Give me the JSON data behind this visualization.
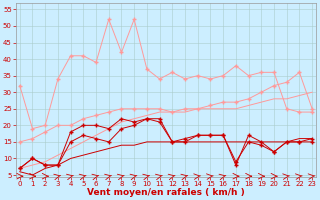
{
  "bg_color": "#cceeff",
  "grid_color": "#aacccc",
  "xlabel": "Vent moyen/en rafales ( km/h )",
  "xlabel_color": "#cc0000",
  "xlabel_fontsize": 6.5,
  "ylabel_ticks": [
    5,
    10,
    15,
    20,
    25,
    30,
    35,
    40,
    45,
    50,
    55
  ],
  "xticks": [
    0,
    1,
    2,
    3,
    4,
    5,
    6,
    7,
    8,
    9,
    10,
    11,
    12,
    13,
    14,
    15,
    16,
    17,
    18,
    19,
    20,
    21,
    22,
    23
  ],
  "x": [
    0,
    1,
    2,
    3,
    4,
    5,
    6,
    7,
    8,
    9,
    10,
    11,
    12,
    13,
    14,
    15,
    16,
    17,
    18,
    19,
    20,
    21,
    22,
    23
  ],
  "line_red1": [
    7,
    10,
    8,
    8,
    18,
    20,
    20,
    19,
    22,
    21,
    22,
    22,
    15,
    16,
    17,
    17,
    17,
    8,
    17,
    15,
    12,
    15,
    15,
    16
  ],
  "line_red2": [
    7,
    10,
    8,
    8,
    15,
    17,
    16,
    15,
    19,
    20,
    22,
    21,
    15,
    15,
    17,
    17,
    17,
    9,
    15,
    14,
    12,
    15,
    15,
    15
  ],
  "line_red3": [
    6,
    5,
    7,
    8,
    10,
    11,
    12,
    13,
    14,
    14,
    15,
    15,
    15,
    15,
    15,
    15,
    15,
    15,
    15,
    15,
    15,
    15,
    16,
    16
  ],
  "line_pink1": [
    32,
    19,
    20,
    34,
    41,
    41,
    39,
    52,
    42,
    52,
    37,
    34,
    36,
    34,
    35,
    34,
    35,
    38,
    35,
    36,
    36,
    25,
    24,
    24
  ],
  "line_pink2": [
    15,
    16,
    18,
    20,
    20,
    22,
    23,
    24,
    25,
    25,
    25,
    25,
    24,
    25,
    25,
    26,
    27,
    27,
    28,
    30,
    32,
    33,
    36,
    25
  ],
  "line_pink3": [
    7,
    8,
    9,
    11,
    13,
    15,
    17,
    19,
    21,
    22,
    23,
    24,
    24,
    24,
    25,
    25,
    25,
    25,
    26,
    27,
    28,
    28,
    29,
    30
  ],
  "ylim": [
    4.5,
    57
  ],
  "xlim": [
    -0.3,
    23.3
  ],
  "tick_fontsize": 5,
  "line_red_color": "#cc0000",
  "line_pink_color": "#ff9999",
  "marker_size": 2.0
}
